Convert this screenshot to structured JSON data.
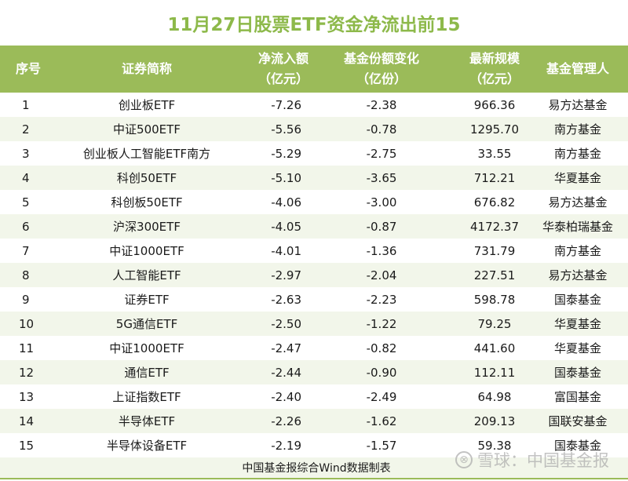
{
  "title": "11月27日股票ETF资金净流出前15",
  "colors": {
    "accent": "#9bbb59",
    "title_text": "#8db94a",
    "row_alt": "#f2f6ea"
  },
  "header": {
    "idx": "序号",
    "name": "证券简称",
    "flow_line1": "净流入额",
    "flow_line2": "（亿元）",
    "share_line1": "基金份额变化",
    "share_line2": "（亿份）",
    "aum_line1": "最新规模",
    "aum_line2": "（亿元）",
    "manager": "基金管理人"
  },
  "rows": [
    {
      "idx": "1",
      "name": "创业板ETF",
      "flow": "-7.26",
      "share": "-2.38",
      "aum": "966.36",
      "manager": "易方达基金"
    },
    {
      "idx": "2",
      "name": "中证500ETF",
      "flow": "-5.56",
      "share": "-0.78",
      "aum": "1295.70",
      "manager": "南方基金"
    },
    {
      "idx": "3",
      "name": "创业板人工智能ETF南方",
      "flow": "-5.29",
      "share": "-2.75",
      "aum": "33.55",
      "manager": "南方基金"
    },
    {
      "idx": "4",
      "name": "科创50ETF",
      "flow": "-5.10",
      "share": "-3.65",
      "aum": "712.21",
      "manager": "华夏基金"
    },
    {
      "idx": "5",
      "name": "科创板50ETF",
      "flow": "-4.06",
      "share": "-3.00",
      "aum": "676.82",
      "manager": "易方达基金"
    },
    {
      "idx": "6",
      "name": "沪深300ETF",
      "flow": "-4.05",
      "share": "-0.87",
      "aum": "4172.37",
      "manager": "华泰柏瑞基金"
    },
    {
      "idx": "7",
      "name": "中证1000ETF",
      "flow": "-4.01",
      "share": "-1.36",
      "aum": "731.79",
      "manager": "南方基金"
    },
    {
      "idx": "8",
      "name": "人工智能ETF",
      "flow": "-2.97",
      "share": "-2.04",
      "aum": "227.51",
      "manager": "易方达基金"
    },
    {
      "idx": "9",
      "name": "证券ETF",
      "flow": "-2.63",
      "share": "-2.23",
      "aum": "598.78",
      "manager": "国泰基金"
    },
    {
      "idx": "10",
      "name": "5G通信ETF",
      "flow": "-2.50",
      "share": "-1.22",
      "aum": "79.25",
      "manager": "华夏基金"
    },
    {
      "idx": "11",
      "name": "中证1000ETF",
      "flow": "-2.47",
      "share": "-0.82",
      "aum": "441.60",
      "manager": "华夏基金"
    },
    {
      "idx": "12",
      "name": "通信ETF",
      "flow": "-2.44",
      "share": "-0.90",
      "aum": "112.11",
      "manager": "国泰基金"
    },
    {
      "idx": "13",
      "name": "上证指数ETF",
      "flow": "-2.40",
      "share": "-2.49",
      "aum": "64.98",
      "manager": "富国基金"
    },
    {
      "idx": "14",
      "name": "半导体ETF",
      "flow": "-2.26",
      "share": "-1.62",
      "aum": "209.13",
      "manager": "国联安基金"
    },
    {
      "idx": "15",
      "name": "半导体设备ETF",
      "flow": "-2.19",
      "share": "-1.57",
      "aum": "59.38",
      "manager": "国泰基金"
    }
  ],
  "footer": {
    "source": "中国基金报综合Wind数据制表"
  },
  "watermark": {
    "logo_glyph": "⊗",
    "text": "雪球：中国基金报"
  }
}
